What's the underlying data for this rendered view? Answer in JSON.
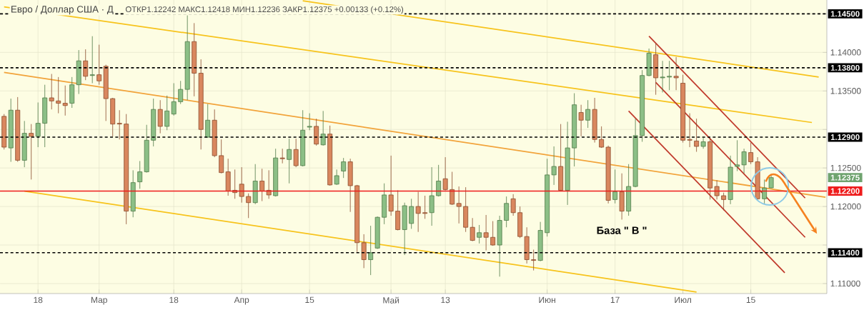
{
  "chart_data": {
    "type": "candlestick",
    "title": "Евро / Доллар США · Д",
    "subtitle": "ОТКР1.12242 МАКС1.12418 МИН1.12236 ЗАКР1.12375 +0.00133 (+0.12%)",
    "categories": [
      null,
      null,
      null,
      null,
      null,
      "18",
      null,
      null,
      null,
      null,
      null,
      null,
      null,
      null,
      "Мар",
      null,
      null,
      null,
      null,
      null,
      null,
      null,
      null,
      null,
      null,
      "18",
      null,
      null,
      null,
      null,
      null,
      null,
      null,
      null,
      null,
      "Апр",
      null,
      null,
      null,
      null,
      null,
      null,
      null,
      null,
      null,
      "15",
      null,
      null,
      null,
      null,
      null,
      null,
      null,
      null,
      null,
      null,
      null,
      "Май",
      null,
      null,
      null,
      null,
      null,
      null,
      null,
      "13",
      null,
      null,
      null,
      null,
      null,
      null,
      null,
      null,
      null,
      null,
      null,
      null,
      null,
      null,
      "Июн",
      null,
      null,
      null,
      null,
      null,
      null,
      null,
      null,
      null,
      "17",
      null,
      null,
      null,
      null,
      null,
      null,
      null,
      null,
      null,
      "Июл",
      null,
      null,
      null,
      null,
      null,
      null,
      null,
      null,
      null,
      "15",
      null,
      null,
      null,
      null,
      null,
      null,
      null,
      null,
      null,
      null,
      null
    ],
    "ohlc": [
      [
        1.1317,
        1.132,
        1.1274,
        1.1277
      ],
      [
        1.1276,
        1.134,
        1.1258,
        1.1325
      ],
      [
        1.1325,
        1.1342,
        1.1258,
        1.126
      ],
      [
        1.126,
        1.1311,
        1.1251,
        1.1295
      ],
      [
        1.1295,
        1.1307,
        1.1235,
        1.1291
      ],
      [
        1.1291,
        1.1335,
        1.1277,
        1.1308
      ],
      [
        1.1308,
        1.1358,
        1.1277,
        1.1341
      ],
      [
        1.1341,
        1.1372,
        1.1326,
        1.1337
      ],
      [
        1.1337,
        1.1368,
        1.1321,
        1.1334
      ],
      [
        1.1334,
        1.1357,
        1.1318,
        1.1331
      ],
      [
        1.1334,
        1.1368,
        1.1328,
        1.1358
      ],
      [
        1.1358,
        1.1403,
        1.1346,
        1.1389
      ],
      [
        1.1389,
        1.1404,
        1.1364,
        1.1369
      ],
      [
        1.137,
        1.1421,
        1.136,
        1.1371
      ],
      [
        1.1371,
        1.141,
        1.1358,
        1.1363
      ],
      [
        1.1382,
        1.1384,
        1.1311,
        1.134
      ],
      [
        1.134,
        1.1341,
        1.1291,
        1.1307
      ],
      [
        1.1308,
        1.1325,
        1.1287,
        1.1307
      ],
      [
        1.1307,
        1.132,
        1.1177,
        1.1194
      ],
      [
        1.1194,
        1.1247,
        1.1186,
        1.1231
      ],
      [
        1.1232,
        1.1259,
        1.1223,
        1.1245
      ],
      [
        1.1245,
        1.1306,
        1.1244,
        1.1286
      ],
      [
        1.1286,
        1.134,
        1.1278,
        1.1326
      ],
      [
        1.1326,
        1.1338,
        1.1295,
        1.1304
      ],
      [
        1.1304,
        1.1344,
        1.1299,
        1.1324
      ],
      [
        1.132,
        1.136,
        1.1318,
        1.1336
      ],
      [
        1.1336,
        1.1363,
        1.1333,
        1.1352
      ],
      [
        1.1352,
        1.1448,
        1.1338,
        1.1414
      ],
      [
        1.1414,
        1.1438,
        1.1343,
        1.1373
      ],
      [
        1.1373,
        1.1391,
        1.1274,
        1.13
      ],
      [
        1.129,
        1.1333,
        1.1289,
        1.1312
      ],
      [
        1.1312,
        1.1326,
        1.1264,
        1.1266
      ],
      [
        1.1266,
        1.1287,
        1.1243,
        1.1244
      ],
      [
        1.1245,
        1.1262,
        1.1214,
        1.122
      ],
      [
        1.1221,
        1.1248,
        1.121,
        1.1218
      ],
      [
        1.1229,
        1.1251,
        1.1205,
        1.1213
      ],
      [
        1.1213,
        1.1217,
        1.1185,
        1.1205
      ],
      [
        1.1205,
        1.1255,
        1.1203,
        1.1233
      ],
      [
        1.1233,
        1.1249,
        1.1207,
        1.122
      ],
      [
        1.1221,
        1.1247,
        1.121,
        1.1215
      ],
      [
        1.1214,
        1.1275,
        1.1213,
        1.1263
      ],
      [
        1.1263,
        1.1275,
        1.1256,
        1.1262
      ],
      [
        1.1261,
        1.1288,
        1.123,
        1.1274
      ],
      [
        1.1274,
        1.1288,
        1.1251,
        1.1253
      ],
      [
        1.1253,
        1.1325,
        1.1252,
        1.1299
      ],
      [
        1.1303,
        1.1321,
        1.1299,
        1.1304
      ],
      [
        1.1304,
        1.1314,
        1.1279,
        1.1281
      ],
      [
        1.128,
        1.1324,
        1.1279,
        1.1294
      ],
      [
        1.1294,
        1.1305,
        1.1227,
        1.1228
      ],
      [
        1.1229,
        1.1248,
        1.1228,
        1.124
      ],
      [
        1.1246,
        1.1263,
        1.1237,
        1.1258
      ],
      [
        1.1258,
        1.1262,
        1.1193,
        1.1227
      ],
      [
        1.1227,
        1.1228,
        1.1141,
        1.1153
      ],
      [
        1.1153,
        1.1164,
        1.112,
        1.1131
      ],
      [
        1.1131,
        1.1175,
        1.1111,
        1.114
      ],
      [
        1.1146,
        1.1187,
        1.1145,
        1.1186
      ],
      [
        1.1186,
        1.123,
        1.1177,
        1.1215
      ],
      [
        1.1215,
        1.1266,
        1.1188,
        1.1194
      ],
      [
        1.1194,
        1.1221,
        1.1169,
        1.117
      ],
      [
        1.117,
        1.1205,
        1.1137,
        1.1201
      ],
      [
        1.1178,
        1.121,
        1.1171,
        1.12
      ],
      [
        1.12,
        1.1219,
        1.1167,
        1.1191
      ],
      [
        1.1192,
        1.1214,
        1.1184,
        1.1191
      ],
      [
        1.1192,
        1.1251,
        1.1175,
        1.1214
      ],
      [
        1.1214,
        1.1254,
        1.1213,
        1.1233
      ],
      [
        1.1236,
        1.1264,
        1.1221,
        1.1222
      ],
      [
        1.1222,
        1.1245,
        1.1202,
        1.1203
      ],
      [
        1.1204,
        1.1226,
        1.1178,
        1.12
      ],
      [
        1.12,
        1.1225,
        1.1167,
        1.1173
      ],
      [
        1.1173,
        1.1185,
        1.1155,
        1.1156
      ],
      [
        1.116,
        1.1176,
        1.1152,
        1.1166
      ],
      [
        1.1166,
        1.1189,
        1.1143,
        1.116
      ],
      [
        1.116,
        1.1181,
        1.1149,
        1.115
      ],
      [
        1.115,
        1.1188,
        1.1109,
        1.1182
      ],
      [
        1.1182,
        1.1213,
        1.1173,
        1.1204
      ],
      [
        1.121,
        1.1216,
        1.1188,
        1.1192
      ],
      [
        1.1192,
        1.12,
        1.1159,
        1.1161
      ],
      [
        1.1161,
        1.1173,
        1.1126,
        1.1131
      ],
      [
        1.1131,
        1.1144,
        1.1117,
        1.113
      ],
      [
        1.113,
        1.118,
        1.1129,
        1.1169
      ],
      [
        1.1166,
        1.1262,
        1.1161,
        1.1241
      ],
      [
        1.1241,
        1.1278,
        1.1228,
        1.1252
      ],
      [
        1.1252,
        1.1307,
        1.122,
        1.1221
      ],
      [
        1.1221,
        1.131,
        1.1202,
        1.1276
      ],
      [
        1.1276,
        1.1347,
        1.1252,
        1.1332
      ],
      [
        1.1322,
        1.1332,
        1.1291,
        1.1312
      ],
      [
        1.1312,
        1.1338,
        1.1302,
        1.1326
      ],
      [
        1.1326,
        1.1341,
        1.1283,
        1.1287
      ],
      [
        1.1287,
        1.1304,
        1.1276,
        1.1277
      ],
      [
        1.1277,
        1.1279,
        1.1204,
        1.1208
      ],
      [
        1.1209,
        1.1248,
        1.1204,
        1.1219
      ],
      [
        1.1219,
        1.1243,
        1.1183,
        1.1194
      ],
      [
        1.1194,
        1.1255,
        1.1188,
        1.1226
      ],
      [
        1.1226,
        1.1314,
        1.1225,
        1.1292
      ],
      [
        1.1292,
        1.1377,
        1.1284,
        1.137
      ],
      [
        1.137,
        1.1405,
        1.1369,
        1.1399
      ],
      [
        1.1397,
        1.1412,
        1.1345,
        1.1367
      ],
      [
        1.1367,
        1.1389,
        1.1348,
        1.1368
      ],
      [
        1.1368,
        1.1389,
        1.1351,
        1.1369
      ],
      [
        1.1369,
        1.1394,
        1.1351,
        1.1367
      ],
      [
        1.136,
        1.1371,
        1.1283,
        1.1286
      ],
      [
        1.1287,
        1.1321,
        1.1277,
        1.1286
      ],
      [
        1.1285,
        1.1314,
        1.1271,
        1.1278
      ],
      [
        1.1278,
        1.1289,
        1.1275,
        1.1284
      ],
      [
        1.1284,
        1.1289,
        1.1209,
        1.1224
      ],
      [
        1.1226,
        1.1234,
        1.1209,
        1.1214
      ],
      [
        1.1214,
        1.1218,
        1.1195,
        1.1209
      ],
      [
        1.1209,
        1.1266,
        1.1203,
        1.1251
      ],
      [
        1.1252,
        1.1286,
        1.1246,
        1.1254
      ],
      [
        1.1254,
        1.1275,
        1.1243,
        1.1271
      ],
      [
        1.127,
        1.1283,
        1.1255,
        1.1258
      ],
      [
        1.1258,
        1.1264,
        1.1209,
        1.121
      ],
      [
        1.121,
        1.1235,
        1.1203,
        1.1224
      ],
      [
        1.12242,
        1.12418,
        1.12236,
        1.12375
      ],
      null,
      null,
      null,
      null,
      null,
      null,
      null,
      null
    ],
    "series": [
      {
        "type": "line",
        "color": "#f7c31b",
        "values": [
          1.1459,
          null,
          null,
          null,
          null,
          null,
          null,
          null,
          null,
          null,
          null,
          null,
          null,
          null,
          null,
          null,
          null,
          null,
          null,
          null,
          null,
          null,
          null,
          null,
          null,
          null,
          null,
          null,
          null,
          null,
          null,
          null,
          null,
          null,
          null,
          null,
          null,
          null,
          null,
          null,
          null,
          null,
          null,
          null,
          null,
          null,
          null,
          null,
          null,
          null,
          null,
          null,
          null,
          null,
          null,
          null,
          null,
          null,
          null,
          null,
          null,
          null,
          null,
          null,
          null,
          null,
          null,
          null,
          null,
          null,
          null,
          null,
          null,
          null,
          null,
          null,
          null,
          null,
          null,
          null,
          null,
          null,
          null,
          null,
          null,
          null,
          null,
          null,
          null,
          null,
          null,
          null,
          null,
          null,
          null,
          null,
          null,
          null,
          null,
          null,
          null,
          null,
          null,
          null,
          null,
          null,
          null,
          null,
          null,
          null,
          null,
          null,
          null,
          null,
          null,
          null,
          null,
          null,
          null,
          1.1309,
          null,
          null
        ]
      },
      {
        "type": "line",
        "color": "#f7c31b",
        "values": [
          null,
          null,
          null,
          null,
          null,
          null,
          null,
          null,
          null,
          null,
          null,
          null,
          null,
          null,
          null,
          null,
          null,
          null,
          null,
          null,
          null,
          null,
          null,
          null,
          null,
          null,
          null,
          null,
          null,
          null,
          null,
          null,
          null,
          null,
          null,
          null,
          null,
          null,
          null,
          null,
          null,
          null,
          null,
          null,
          1.1467,
          null,
          null,
          null,
          null,
          null,
          null,
          null,
          null,
          null,
          null,
          null,
          null,
          null,
          null,
          null,
          null,
          null,
          null,
          null,
          null,
          null,
          null,
          null,
          null,
          null,
          null,
          null,
          null,
          null,
          null,
          null,
          null,
          null,
          null,
          null,
          null,
          null,
          null,
          null,
          null,
          null,
          null,
          null,
          null,
          null,
          null,
          null,
          null,
          null,
          null,
          null,
          null,
          null,
          null,
          null,
          null,
          null,
          null,
          null,
          null,
          null,
          null,
          null,
          null,
          null,
          null,
          null,
          null,
          null,
          null,
          null,
          null,
          null,
          null,
          null,
          1.1368,
          null
        ]
      },
      {
        "type": "line",
        "color": "#f7c31b",
        "values": [
          null,
          null,
          null,
          1.122,
          null,
          null,
          null,
          null,
          null,
          null,
          null,
          null,
          null,
          null,
          null,
          null,
          null,
          null,
          null,
          null,
          null,
          null,
          null,
          null,
          null,
          null,
          null,
          null,
          null,
          null,
          null,
          null,
          null,
          null,
          null,
          null,
          null,
          null,
          null,
          null,
          null,
          null,
          null,
          null,
          null,
          null,
          null,
          null,
          null,
          null,
          null,
          null,
          null,
          null,
          null,
          null,
          null,
          null,
          null,
          null,
          null,
          null,
          null,
          null,
          null,
          null,
          null,
          null,
          null,
          null,
          null,
          null,
          null,
          null,
          null,
          null,
          null,
          null,
          null,
          null,
          null,
          null,
          null,
          null,
          null,
          null,
          null,
          null,
          null,
          null,
          null,
          null,
          null,
          null,
          null,
          null,
          null,
          null,
          null,
          null,
          null,
          null,
          1.1089,
          null,
          null,
          null,
          null,
          null,
          null,
          null,
          null,
          null,
          null,
          null,
          null,
          null,
          null,
          null,
          null,
          null,
          null,
          null
        ]
      },
      {
        "type": "line",
        "color": "#f2a33a",
        "values": [
          1.1374,
          null,
          null,
          null,
          null,
          null,
          null,
          null,
          null,
          null,
          null,
          null,
          null,
          null,
          null,
          null,
          null,
          null,
          null,
          null,
          null,
          null,
          null,
          null,
          null,
          null,
          null,
          null,
          null,
          null,
          null,
          null,
          null,
          null,
          null,
          null,
          null,
          null,
          null,
          null,
          null,
          null,
          null,
          null,
          null,
          null,
          null,
          null,
          null,
          null,
          null,
          null,
          null,
          null,
          null,
          null,
          null,
          null,
          null,
          null,
          null,
          null,
          null,
          null,
          null,
          null,
          null,
          null,
          null,
          null,
          null,
          null,
          null,
          null,
          null,
          null,
          null,
          null,
          null,
          null,
          null,
          null,
          null,
          null,
          null,
          null,
          null,
          null,
          null,
          null,
          null,
          null,
          null,
          null,
          null,
          null,
          null,
          null,
          null,
          null,
          null,
          null,
          null,
          null,
          null,
          null,
          null,
          null,
          null,
          null,
          null,
          null,
          null,
          null,
          null,
          null,
          null,
          null,
          null,
          null,
          null,
          1.1212
        ]
      },
      {
        "type": "line",
        "color": "#c0392b",
        "values": [
          null,
          null,
          null,
          null,
          null,
          null,
          null,
          null,
          null,
          null,
          null,
          null,
          null,
          null,
          null,
          null,
          null,
          null,
          null,
          null,
          null,
          null,
          null,
          null,
          null,
          null,
          null,
          null,
          null,
          null,
          null,
          null,
          null,
          null,
          null,
          null,
          null,
          null,
          null,
          null,
          null,
          null,
          null,
          null,
          null,
          null,
          null,
          null,
          null,
          null,
          null,
          null,
          null,
          null,
          null,
          null,
          null,
          null,
          null,
          null,
          null,
          null,
          null,
          null,
          null,
          null,
          null,
          null,
          null,
          null,
          null,
          null,
          null,
          null,
          null,
          null,
          null,
          null,
          null,
          null,
          null,
          null,
          null,
          null,
          null,
          null,
          null,
          null,
          null,
          null,
          null,
          null,
          null,
          null,
          null,
          1.1421,
          null,
          null,
          null,
          null,
          null,
          null,
          null,
          null,
          null,
          null,
          null,
          null,
          null,
          null,
          null,
          null,
          null,
          null,
          null,
          null,
          null,
          null,
          1.1211,
          null,
          null,
          null
        ]
      },
      {
        "type": "line",
        "color": "#c0392b",
        "values": [
          null,
          null,
          null,
          null,
          null,
          null,
          null,
          null,
          null,
          null,
          null,
          null,
          null,
          null,
          null,
          null,
          null,
          null,
          null,
          null,
          null,
          null,
          null,
          null,
          null,
          null,
          null,
          null,
          null,
          null,
          null,
          null,
          null,
          null,
          null,
          null,
          null,
          null,
          null,
          null,
          null,
          null,
          null,
          null,
          null,
          null,
          null,
          null,
          null,
          null,
          null,
          null,
          null,
          null,
          null,
          null,
          null,
          null,
          null,
          null,
          null,
          null,
          null,
          null,
          null,
          null,
          null,
          null,
          null,
          null,
          null,
          null,
          null,
          null,
          null,
          null,
          null,
          null,
          null,
          null,
          null,
          null,
          null,
          null,
          null,
          null,
          null,
          null,
          null,
          null,
          null,
          null,
          null,
          null,
          null,
          null,
          1.1361,
          null,
          null,
          null,
          null,
          null,
          null,
          null,
          null,
          null,
          null,
          null,
          null,
          null,
          null,
          null,
          null,
          null,
          null,
          null,
          null,
          null,
          1.116,
          null,
          null,
          null
        ]
      },
      {
        "type": "line",
        "color": "#c0392b",
        "values": [
          null,
          null,
          null,
          null,
          null,
          null,
          null,
          null,
          null,
          null,
          null,
          null,
          null,
          null,
          null,
          null,
          null,
          null,
          null,
          null,
          null,
          null,
          null,
          null,
          null,
          null,
          null,
          null,
          null,
          null,
          null,
          null,
          null,
          null,
          null,
          null,
          null,
          null,
          null,
          null,
          null,
          null,
          null,
          null,
          null,
          null,
          null,
          null,
          null,
          null,
          null,
          null,
          null,
          null,
          null,
          null,
          null,
          null,
          null,
          null,
          null,
          null,
          null,
          null,
          null,
          null,
          null,
          null,
          null,
          null,
          null,
          null,
          null,
          null,
          null,
          null,
          null,
          null,
          null,
          null,
          null,
          null,
          null,
          null,
          null,
          null,
          null,
          null,
          null,
          null,
          null,
          null,
          1.1324,
          null,
          null,
          null,
          null,
          null,
          null,
          null,
          null,
          null,
          null,
          null,
          null,
          null,
          null,
          null,
          null,
          null,
          null,
          null,
          null,
          null,
          null,
          1.1114,
          null,
          null,
          null,
          null,
          null,
          null
        ]
      }
    ],
    "ylim": [
      1.1087,
      1.1468
    ],
    "yticks": [
      {
        "value": 1.11,
        "label": "1.11000"
      },
      {
        "value": 1.115,
        "label": null
      },
      {
        "value": 1.12,
        "label": "1.12000"
      },
      {
        "value": 1.125,
        "label": "1.12500"
      },
      {
        "value": 1.13,
        "label": null
      },
      {
        "value": 1.135,
        "label": "1.13500"
      },
      {
        "value": 1.14,
        "label": "1.14000"
      },
      {
        "value": 1.145,
        "label": null
      }
    ],
    "ref_lines": [
      {
        "axis": "y",
        "value": 1.145,
        "label": "1.14500",
        "color": "#000000",
        "line_style": "dashed"
      },
      {
        "axis": "y",
        "value": 1.138,
        "label": "1.13800",
        "color": "#000000",
        "line_style": "dashed"
      },
      {
        "axis": "y",
        "value": 1.129,
        "label": "1.12900",
        "color": "#000000",
        "line_style": "dashed"
      },
      {
        "axis": "y",
        "value": 1.114,
        "label": "1.11400",
        "color": "#000000",
        "line_style": "dashed"
      },
      {
        "axis": "y",
        "value": 1.122,
        "label": "1.12200",
        "color": "#ee1c1c",
        "line_style": "solid"
      }
    ],
    "annotations": [
      "База  \" В \"",
      "1.12375"
    ],
    "grid": true
  }
}
